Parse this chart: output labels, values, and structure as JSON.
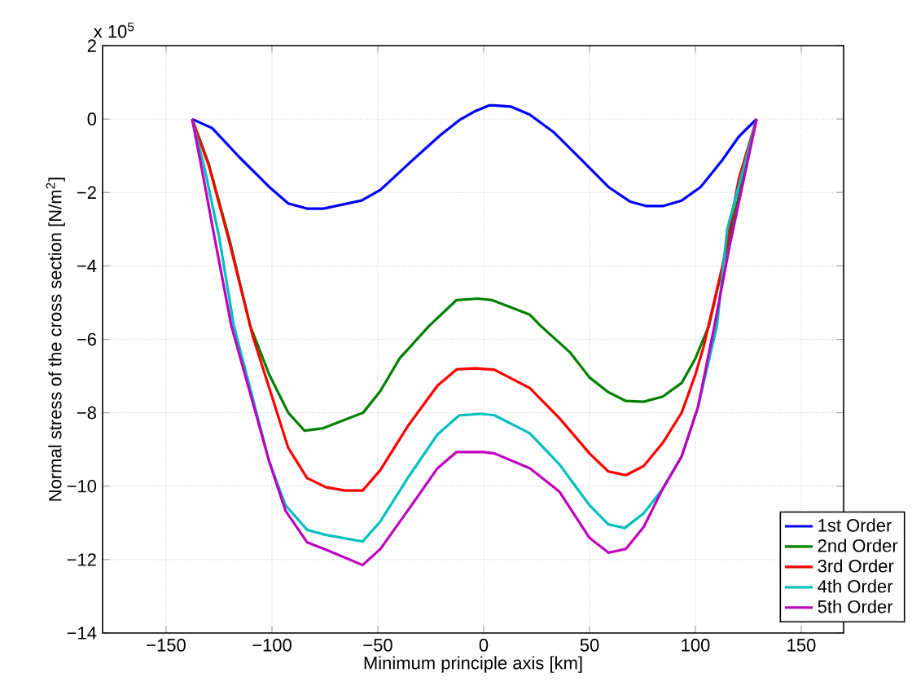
{
  "chart_data": {
    "type": "line",
    "xlabel": "Minimum principle axis [km]",
    "ylabel": "Normal stress of the cross section [N/m$^{2}$]",
    "annotations": [
      "x 10$^{5}$"
    ],
    "xlim": [
      -180,
      170
    ],
    "ylim": [
      -14,
      2
    ],
    "xticks": [
      {
        "value": -150,
        "label": "−150"
      },
      {
        "value": -100,
        "label": "−100"
      },
      {
        "value": -50,
        "label": "−50"
      },
      0,
      50,
      100,
      150
    ],
    "yticks": [
      {
        "value": -14,
        "label": "−14"
      },
      {
        "value": -12,
        "label": "−12"
      },
      {
        "value": -10,
        "label": "−10"
      },
      {
        "value": -8,
        "label": "−8"
      },
      {
        "value": -6,
        "label": "−6"
      },
      {
        "value": -4,
        "label": "−4"
      },
      {
        "value": -2,
        "label": "−2"
      },
      0,
      2
    ],
    "grid": true,
    "legend": "bottom right",
    "line_style": "solid",
    "series": [
      {
        "name": "1st Order",
        "color": "#0000ff",
        "x": [
          -137.7,
          -128.2,
          -115.4,
          -101.3,
          -92.3,
          -83.4,
          -75.7,
          -57.7,
          -48.8,
          -33.4,
          -20.5,
          -11.5,
          -3.8,
          2.5,
          5.1,
          12.8,
          21.8,
          33.3,
          46.2,
          58.9,
          69.2,
          76.9,
          84.6,
          93.5,
          102.5,
          112.8,
          120.5,
          128.9
        ],
        "values": [
          0,
          -0.25,
          -1.04,
          -1.85,
          -2.3,
          -2.44,
          -2.44,
          -2.22,
          -1.93,
          -1.11,
          -0.44,
          -0.03,
          0.22,
          0.37,
          0.37,
          0.34,
          0.12,
          -0.37,
          -1.11,
          -1.85,
          -2.25,
          -2.37,
          -2.37,
          -2.22,
          -1.85,
          -1.11,
          -0.48,
          0
        ]
      },
      {
        "name": "2nd Order",
        "color": "#008000",
        "x": [
          -137.7,
          -130,
          -120,
          -110.3,
          -101.3,
          -92.3,
          -84.6,
          -75.7,
          -57,
          -48.8,
          -39.7,
          -25.7,
          -12.8,
          -2.6,
          3.8,
          21.8,
          26.9,
          41,
          50,
          58.9,
          67.2,
          75.6,
          84.6,
          93.5,
          100,
          106.4,
          128.9
        ],
        "values": [
          0,
          -1.2,
          -3.3,
          -5.63,
          -6.96,
          -8.0,
          -8.49,
          -8.42,
          -8.0,
          -7.41,
          -6.52,
          -5.63,
          -4.93,
          -4.89,
          -4.93,
          -5.33,
          -5.63,
          -6.37,
          -7.04,
          -7.44,
          -7.68,
          -7.7,
          -7.56,
          -7.19,
          -6.52,
          -5.63,
          0
        ]
      },
      {
        "name": "3rd Order",
        "color": "#ff0000",
        "x": [
          -137.7,
          -129.5,
          -120.5,
          -109,
          -100,
          -92.3,
          -83.4,
          -74.4,
          -65.4,
          -57.2,
          -48.8,
          -35.9,
          -21.8,
          -12.8,
          -3.8,
          5.1,
          21.8,
          35.8,
          50,
          58.9,
          67.2,
          75.6,
          84.6,
          93.5,
          100,
          103.8,
          112.8,
          120.5,
          128.9
        ],
        "values": [
          0,
          -1.33,
          -3.26,
          -5.93,
          -7.56,
          -8.96,
          -9.78,
          -10.03,
          -10.12,
          -10.12,
          -9.56,
          -8.37,
          -7.26,
          -6.82,
          -6.79,
          -6.83,
          -7.33,
          -8.15,
          -9.11,
          -9.6,
          -9.7,
          -9.45,
          -8.82,
          -8.0,
          -6.96,
          -6.22,
          -4.0,
          -1.63,
          0
        ]
      },
      {
        "name": "4th Order",
        "color": "#00bfbf",
        "x": [
          -137.7,
          -132,
          -125,
          -118,
          -101.3,
          -93.6,
          -83.4,
          -74.4,
          -57.2,
          -48.8,
          -35.9,
          -21.8,
          -11.5,
          -1.3,
          5.1,
          21.8,
          35.8,
          50,
          58.9,
          66.6,
          75.6,
          84.6,
          93.5,
          101.2,
          110.2,
          115,
          122,
          128.9
        ],
        "values": [
          0,
          -1.3,
          -3.2,
          -5.63,
          -9.33,
          -10.52,
          -11.19,
          -11.33,
          -11.51,
          -10.96,
          -9.78,
          -8.59,
          -8.07,
          -8.03,
          -8.07,
          -8.56,
          -9.41,
          -10.52,
          -11.04,
          -11.14,
          -10.74,
          -10.07,
          -9.19,
          -7.85,
          -5.63,
          -3.0,
          -1.5,
          0
        ]
      },
      {
        "name": "5th Order",
        "color": "#bf00bf",
        "x": [
          -137.7,
          -133,
          -128,
          -119.2,
          -101.3,
          -93.6,
          -83.4,
          -74.4,
          -57.2,
          -48.8,
          -35.9,
          -21.8,
          -12.8,
          0,
          5.1,
          21.8,
          35.8,
          50,
          58.9,
          67.2,
          75.6,
          84.6,
          93.5,
          101.2,
          109,
          116,
          123,
          128.9
        ],
        "values": [
          0,
          -1.4,
          -2.96,
          -5.63,
          -9.33,
          -10.67,
          -11.53,
          -11.73,
          -12.15,
          -11.71,
          -10.67,
          -9.51,
          -9.07,
          -9.07,
          -9.11,
          -9.51,
          -10.15,
          -11.41,
          -11.81,
          -11.71,
          -11.11,
          -10.07,
          -9.19,
          -7.85,
          -5.63,
          -3.5,
          -1.6,
          0
        ]
      }
    ]
  }
}
